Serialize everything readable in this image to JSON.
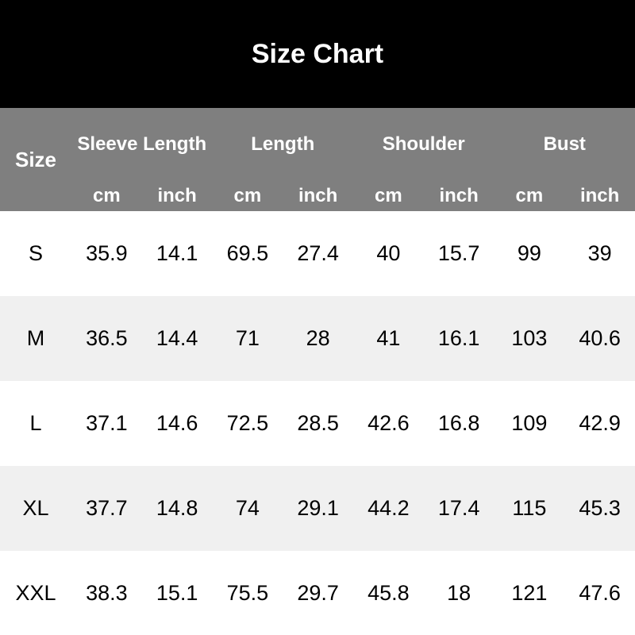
{
  "title": "Size Chart",
  "table": {
    "size_column_header": "Size",
    "groups": [
      {
        "label": "Sleeve Length"
      },
      {
        "label": "Length"
      },
      {
        "label": "Shoulder"
      },
      {
        "label": "Bust"
      }
    ],
    "unit_headers": [
      "cm",
      "inch",
      "cm",
      "inch",
      "cm",
      "inch",
      "cm",
      "inch"
    ],
    "rows": [
      {
        "size": "S",
        "values": [
          "35.9",
          "14.1",
          "69.5",
          "27.4",
          "40",
          "15.7",
          "99",
          "39"
        ]
      },
      {
        "size": "M",
        "values": [
          "36.5",
          "14.4",
          "71",
          "28",
          "41",
          "16.1",
          "103",
          "40.6"
        ]
      },
      {
        "size": "L",
        "values": [
          "37.1",
          "14.6",
          "72.5",
          "28.5",
          "42.6",
          "16.8",
          "109",
          "42.9"
        ]
      },
      {
        "size": "XL",
        "values": [
          "37.7",
          "14.8",
          "74",
          "29.1",
          "44.2",
          "17.4",
          "115",
          "45.3"
        ]
      },
      {
        "size": "XXL",
        "values": [
          "38.3",
          "15.1",
          "75.5",
          "29.7",
          "45.8",
          "18",
          "121",
          "47.6"
        ]
      }
    ]
  },
  "colors": {
    "header_bg": "#000000",
    "header_text": "#ffffff",
    "subheader_bg": "#7f7f7f",
    "subheader_text": "#ffffff",
    "row_bg": "#ffffff",
    "row_alt_bg": "#f0f0f0",
    "data_text": "#000000"
  },
  "chart_data": {
    "type": "table",
    "title": "Size Chart",
    "columns": [
      "Size",
      "Sleeve Length (cm)",
      "Sleeve Length (inch)",
      "Length (cm)",
      "Length (inch)",
      "Shoulder (cm)",
      "Shoulder (inch)",
      "Bust (cm)",
      "Bust (inch)"
    ],
    "rows": [
      [
        "S",
        35.9,
        14.1,
        69.5,
        27.4,
        40,
        15.7,
        99,
        39
      ],
      [
        "M",
        36.5,
        14.4,
        71,
        28,
        41,
        16.1,
        103,
        40.6
      ],
      [
        "L",
        37.1,
        14.6,
        72.5,
        28.5,
        42.6,
        16.8,
        109,
        42.9
      ],
      [
        "XL",
        37.7,
        14.8,
        74,
        29.1,
        44.2,
        17.4,
        115,
        45.3
      ],
      [
        "XXL",
        38.3,
        15.1,
        75.5,
        29.7,
        45.8,
        18,
        121,
        47.6
      ]
    ],
    "layout": {
      "header_band": "two-tier grouped columns",
      "row_striping": "white / light-gray alternating"
    }
  }
}
